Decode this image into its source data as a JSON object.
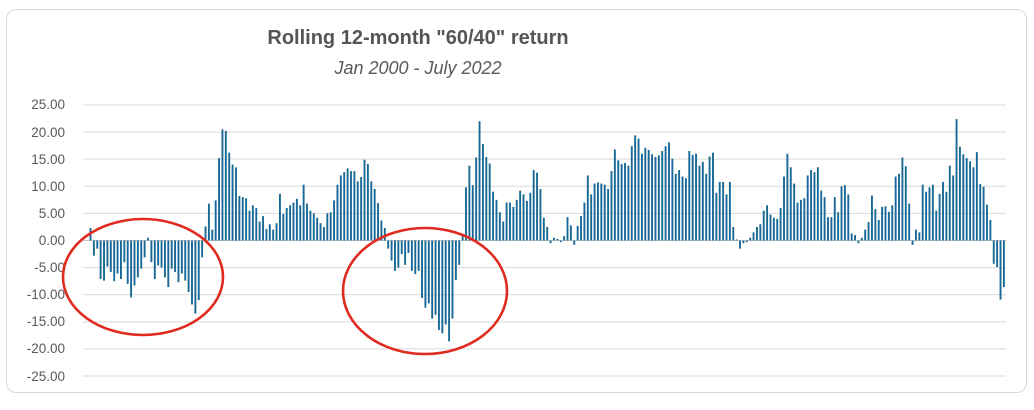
{
  "header": {
    "title": "Rolling 12-month \"60/40\" return",
    "subtitle": "Jan 2000 - July 2022"
  },
  "y_axis": {
    "tick_labels": [
      "25.00",
      "20.00",
      "15.00",
      "10.00",
      "5.00",
      "0.00",
      "-5.00",
      "-10.00",
      "-15.00",
      "-20.00",
      "-25.00"
    ],
    "tick_values": [
      25,
      20,
      15,
      10,
      5,
      0,
      -5,
      -10,
      -15,
      -20,
      -25
    ]
  },
  "colors": {
    "bar": "#196996",
    "gridline": "#D9D9D9",
    "zero_axis": "#C6C6C6",
    "annotation_red": "#DF2B20",
    "title_gray": "#555555"
  },
  "chart_data": {
    "type": "bar",
    "title": "Rolling 12-month \"60/40\" return",
    "subtitle": "Jan 2000 - July 2022",
    "x_start": "2000-01",
    "x_end": "2022-07",
    "x_unit": "month",
    "x_labels_visible": false,
    "ylim": [
      -25,
      25
    ],
    "y_tick_step": 5,
    "grid": true,
    "legend": false,
    "series": [
      {
        "name": "Rolling 12-month 60/40 return (%)",
        "values": [
          2.3,
          -2.8,
          -1.5,
          -7.1,
          -7.4,
          -4.8,
          -5.8,
          -7.5,
          -6.1,
          -7.1,
          -4.0,
          -8.0,
          -10.5,
          -8.3,
          -6.8,
          -5.2,
          -3.1,
          0.5,
          -4.0,
          -7.1,
          -4.6,
          -5.0,
          -6.8,
          -8.6,
          -5.2,
          -5.8,
          -7.7,
          -6.1,
          -7.4,
          -9.5,
          -11.8,
          -13.5,
          -11.0,
          -3.1,
          2.6,
          6.8,
          2.0,
          7.4,
          15.2,
          20.5,
          20.2,
          16.2,
          14.0,
          13.5,
          8.2,
          8.0,
          7.8,
          5.5,
          6.5,
          6.0,
          3.5,
          4.5,
          2.1,
          3.0,
          2.0,
          3.2,
          8.6,
          4.9,
          6.0,
          6.5,
          7.0,
          7.7,
          6.5,
          10.3,
          6.8,
          5.5,
          5.0,
          4.2,
          3.2,
          2.5,
          5.0,
          5.2,
          7.4,
          10.3,
          12.0,
          12.6,
          13.3,
          12.8,
          12.8,
          10.9,
          11.7,
          14.9,
          14.1,
          10.9,
          9.5,
          6.9,
          3.7,
          2.3,
          -1.5,
          -3.7,
          -5.6,
          -5.0,
          -2.5,
          -4.5,
          -2.3,
          -5.6,
          -6.2,
          -5.6,
          -10.6,
          -12.4,
          -11.6,
          -14.4,
          -13.7,
          -16.5,
          -17.1,
          -15.5,
          -18.6,
          -14.4,
          -7.3,
          -4.5,
          0.8,
          9.8,
          13.8,
          10.2,
          15.3,
          22.0,
          17.8,
          15.4,
          14.2,
          9.0,
          7.5,
          5.2,
          3.5,
          7.0,
          7.0,
          6.2,
          7.5,
          9.2,
          8.5,
          7.3,
          8.8,
          13.0,
          12.5,
          9.5,
          4.2,
          2.5,
          -0.5,
          0.5,
          0.3,
          -0.3,
          0.8,
          4.3,
          2.8,
          -0.8,
          2.7,
          4.5,
          7.0,
          12.0,
          8.5,
          10.5,
          10.7,
          10.5,
          10.3,
          9.5,
          12.8,
          16.8,
          14.8,
          14.1,
          14.3,
          13.8,
          17.4,
          19.4,
          18.8,
          16.0,
          17.1,
          16.7,
          15.9,
          15.4,
          15.7,
          16.5,
          17.4,
          18.1,
          15.1,
          12.3,
          13.0,
          11.8,
          11.5,
          16.5,
          15.8,
          16.0,
          13.8,
          14.5,
          12.3,
          15.5,
          16.2,
          8.8,
          10.8,
          10.8,
          8.5,
          10.8,
          2.5,
          0.2,
          -1.5,
          -0.5,
          -0.3,
          0.5,
          1.5,
          2.5,
          3.0,
          5.5,
          6.5,
          4.8,
          4.2,
          4.0,
          6.0,
          11.8,
          16.0,
          13.5,
          10.5,
          7.0,
          7.5,
          7.8,
          12.0,
          13.0,
          12.6,
          13.5,
          9.2,
          8.0,
          4.3,
          4.3,
          8.0,
          5.2,
          10.0,
          10.2,
          8.5,
          1.3,
          1.0,
          -0.5,
          0.5,
          2.0,
          3.4,
          8.3,
          5.8,
          3.8,
          6.2,
          6.3,
          5.3,
          6.5,
          11.8,
          12.3,
          15.3,
          13.7,
          6.8,
          -0.8,
          2.0,
          1.5,
          10.3,
          9.0,
          9.8,
          10.3,
          5.5,
          8.6,
          10.8,
          9.0,
          13.8,
          12.0,
          22.4,
          17.3,
          15.9,
          15.2,
          14.6,
          13.5,
          16.3,
          10.4,
          9.9,
          6.6,
          3.8,
          -4.3,
          -4.9,
          -10.9,
          -8.6
        ]
      }
    ],
    "annotations": [
      {
        "type": "ellipse",
        "label": "2000-2002 bear market circle",
        "cx": 143,
        "cy": 277,
        "rx": 80,
        "ry": 58,
        "color": "#DF2B20"
      },
      {
        "type": "ellipse",
        "label": "2008-2009 bear market circle",
        "cx": 425,
        "cy": 291,
        "rx": 82,
        "ry": 63,
        "color": "#DF2B20"
      }
    ]
  }
}
